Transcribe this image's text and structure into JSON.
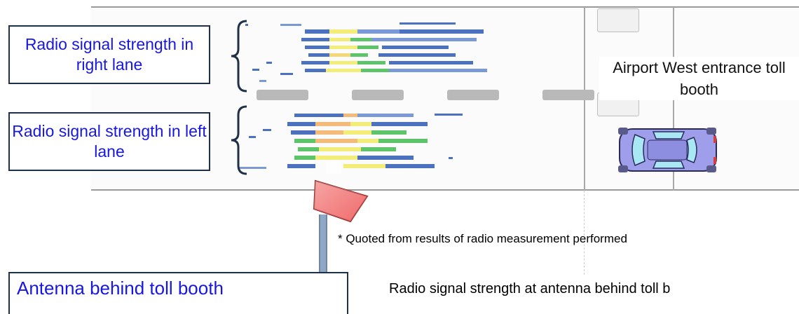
{
  "labels": {
    "right_lane": "Radio signal strength in right lane",
    "left_lane": "Radio signal strength in left lane",
    "toll_booth": "Airport West entrance toll booth",
    "antenna": "Antenna behind toll booth",
    "quote_note": "* Quoted from results of radio measurement performed",
    "caption": "Radio signal strength at antenna behind toll b"
  },
  "colors": {
    "label_text": "#1717e0",
    "box_border": "#1f3147",
    "heat_blue": "#3a63b8",
    "heat_green": "#4dbf5a",
    "heat_yellow": "#f0ec6a",
    "heat_orange": "#f3b46d",
    "car_body": "#9e9eea",
    "car_glass": "#a9e7f4",
    "antenna_flag": "#f06a6a"
  },
  "icons": {
    "car": "car-icon",
    "antenna": "antenna-icon",
    "brace": "brace-icon"
  }
}
